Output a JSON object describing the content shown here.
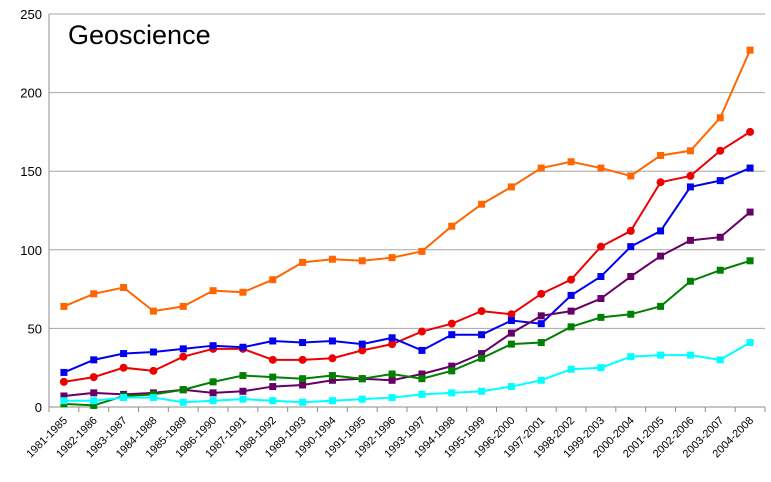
{
  "chart_data": {
    "type": "line",
    "title": "Geoscience",
    "xlabel": "",
    "ylabel": "",
    "ylim": [
      0,
      250
    ],
    "yticks": [
      0,
      50,
      100,
      150,
      200,
      250
    ],
    "grid": true,
    "categories": [
      "1981-1985",
      "1982-1986",
      "1983-1987",
      "1984-1988",
      "1985-1989",
      "1986-1990",
      "1987-1991",
      "1988-1992",
      "1989-1993",
      "1990-1994",
      "1991-1995",
      "1992-1996",
      "1993-1997",
      "1994-1998",
      "1995-1999",
      "1996-2000",
      "1997-2001",
      "1998-2002",
      "1999-2003",
      "2000-2004",
      "2001-2005",
      "2002-2006",
      "2003-2007",
      "2004-2008"
    ],
    "series": [
      {
        "color": "#FF6600",
        "marker": "square",
        "values": [
          64,
          72,
          76,
          61,
          64,
          74,
          73,
          81,
          92,
          94,
          93,
          95,
          99,
          115,
          129,
          140,
          152,
          156,
          152,
          147,
          160,
          163,
          184,
          227
        ]
      },
      {
        "color": "#EE0000",
        "marker": "circle",
        "values": [
          16,
          19,
          25,
          23,
          32,
          37,
          37,
          30,
          30,
          31,
          36,
          40,
          48,
          53,
          61,
          59,
          72,
          81,
          102,
          112,
          143,
          147,
          163,
          175
        ]
      },
      {
        "color": "#0000EE",
        "marker": "square",
        "values": [
          22,
          30,
          34,
          35,
          37,
          39,
          38,
          42,
          41,
          42,
          40,
          44,
          36,
          46,
          46,
          55,
          53,
          71,
          83,
          102,
          112,
          140,
          144,
          152
        ]
      },
      {
        "color": "#660066",
        "marker": "square",
        "values": [
          7,
          9,
          8,
          9,
          11,
          9,
          10,
          13,
          14,
          17,
          18,
          17,
          21,
          26,
          34,
          47,
          58,
          61,
          69,
          83,
          96,
          106,
          108,
          124
        ]
      },
      {
        "color": "#008000",
        "marker": "square",
        "values": [
          2,
          1,
          7,
          8,
          11,
          16,
          20,
          19,
          18,
          20,
          18,
          21,
          18,
          23,
          31,
          40,
          41,
          51,
          57,
          59,
          64,
          80,
          87,
          93
        ]
      },
      {
        "color": "#00FFFF",
        "marker": "square",
        "values": [
          4,
          4,
          6,
          6,
          3,
          4,
          5,
          4,
          3,
          4,
          5,
          6,
          8,
          9,
          10,
          13,
          17,
          24,
          25,
          32,
          33,
          33,
          30,
          41
        ]
      }
    ]
  }
}
